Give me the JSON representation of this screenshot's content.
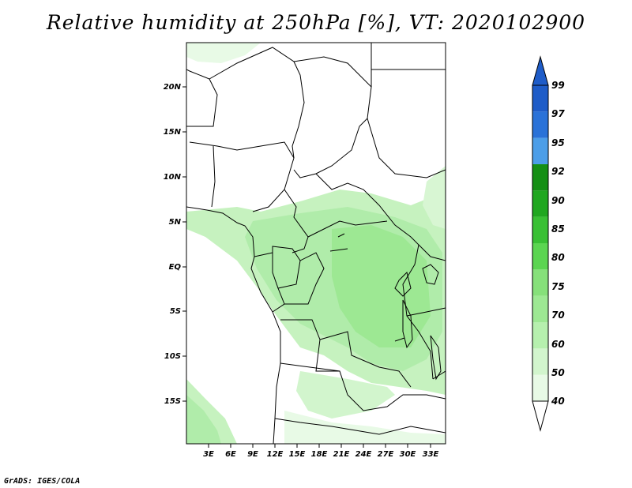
{
  "title": "Relative humidity at 250hPa [%], VT: 2020102900",
  "credit": "GrADS: IGES/COLA",
  "map": {
    "lon_labels": [
      "3E",
      "6E",
      "9E",
      "12E",
      "15E",
      "18E",
      "21E",
      "24E",
      "27E",
      "30E",
      "33E"
    ],
    "lat_labels": [
      "20N",
      "15N",
      "10N",
      "5N",
      "EQ",
      "5S",
      "10S",
      "15S"
    ]
  },
  "colorbar": {
    "labels": [
      "99",
      "97",
      "95",
      "92",
      "90",
      "85",
      "80",
      "75",
      "70",
      "60",
      "50",
      "40"
    ],
    "bands": [
      {
        "from": 40,
        "to": 50,
        "color": "#e8fae6"
      },
      {
        "from": 50,
        "to": 60,
        "color": "#d2f5cd"
      },
      {
        "from": 60,
        "to": 70,
        "color": "#b6f0ae"
      },
      {
        "from": 70,
        "to": 75,
        "color": "#9de893"
      },
      {
        "from": 75,
        "to": 80,
        "color": "#86e07a"
      },
      {
        "from": 80,
        "to": 85,
        "color": "#5bd551"
      },
      {
        "from": 85,
        "to": 90,
        "color": "#39c034"
      },
      {
        "from": 90,
        "to": 92,
        "color": "#20a720"
      },
      {
        "from": 92,
        "to": 95,
        "color": "#158f15"
      },
      {
        "from": 95,
        "to": 97,
        "color": "#4c9ee8"
      },
      {
        "from": 97,
        "to": 99,
        "color": "#2a72d8"
      },
      {
        "from": 99,
        "to": 100,
        "color": "#1e5cc8"
      }
    ]
  }
}
